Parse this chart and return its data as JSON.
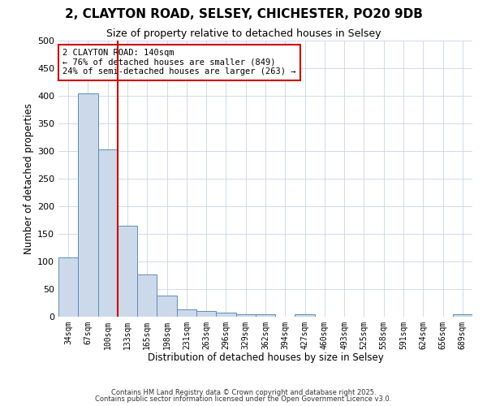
{
  "title_line1": "2, CLAYTON ROAD, SELSEY, CHICHESTER, PO20 9DB",
  "title_line2": "Size of property relative to detached houses in Selsey",
  "xlabel": "Distribution of detached houses by size in Selsey",
  "ylabel": "Number of detached properties",
  "categories": [
    "34sqm",
    "67sqm",
    "100sqm",
    "133sqm",
    "165sqm",
    "198sqm",
    "231sqm",
    "263sqm",
    "296sqm",
    "329sqm",
    "362sqm",
    "394sqm",
    "427sqm",
    "460sqm",
    "493sqm",
    "525sqm",
    "558sqm",
    "591sqm",
    "624sqm",
    "656sqm",
    "689sqm"
  ],
  "values": [
    107,
    405,
    303,
    165,
    76,
    38,
    13,
    10,
    7,
    5,
    5,
    0,
    5,
    0,
    0,
    0,
    0,
    0,
    0,
    0,
    5
  ],
  "bar_color": "#ccd9ea",
  "bar_edge_color": "#5b8db8",
  "vline_x_index": 3,
  "vline_color": "#cc0000",
  "annotation_line1": "2 CLAYTON ROAD: 140sqm",
  "annotation_line2": "← 76% of detached houses are smaller (849)",
  "annotation_line3": "24% of semi-detached houses are larger (263) →",
  "annotation_box_color": "#cc0000",
  "ylim": [
    0,
    500
  ],
  "yticks": [
    0,
    50,
    100,
    150,
    200,
    250,
    300,
    350,
    400,
    450,
    500
  ],
  "grid_color": "#c8d4e8",
  "background_color": "#ffffff",
  "title_fontsize": 11,
  "subtitle_fontsize": 9,
  "footer_line1": "Contains HM Land Registry data © Crown copyright and database right 2025.",
  "footer_line2": "Contains public sector information licensed under the Open Government Licence v3.0."
}
